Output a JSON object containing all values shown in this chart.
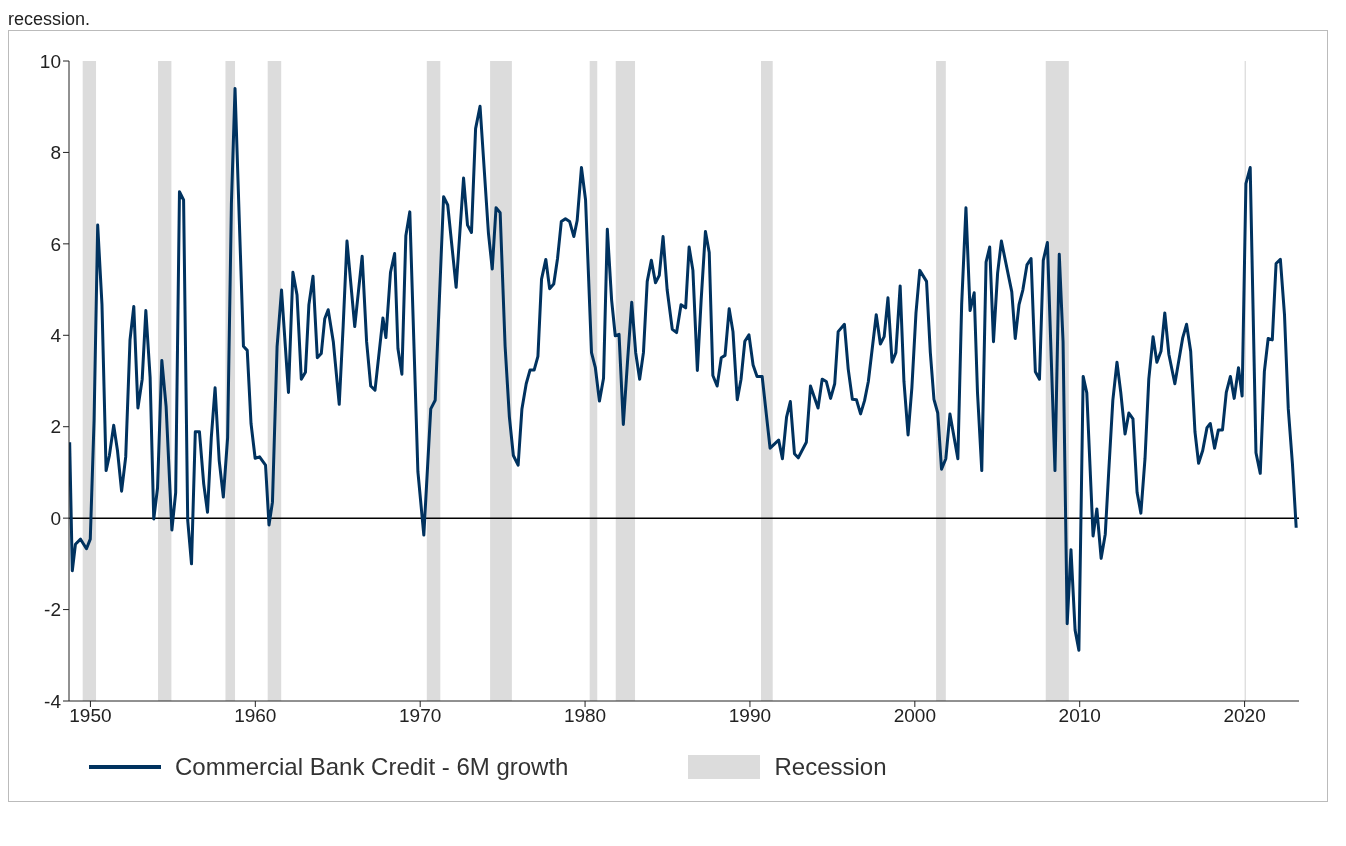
{
  "chart_data": {
    "type": "line",
    "title": "recession.",
    "marker": "none",
    "grid": false,
    "legend": "bottom",
    "x": [
      1948.74,
      1948.9,
      1949.09,
      1949.4,
      1949.76,
      1949.99,
      1950.22,
      1950.44,
      1950.7,
      1950.95,
      1951.15,
      1951.41,
      1951.64,
      1951.89,
      1952.14,
      1952.4,
      1952.63,
      1952.88,
      1953.14,
      1953.36,
      1953.62,
      1953.84,
      1954.07,
      1954.33,
      1954.59,
      1954.94,
      1955.17,
      1955.4,
      1955.65,
      1955.9,
      1956.13,
      1956.36,
      1956.61,
      1956.87,
      1957.1,
      1957.33,
      1957.56,
      1957.81,
      1958.06,
      1958.32,
      1958.55,
      1958.77,
      1959.03,
      1959.28,
      1959.51,
      1959.74,
      1959.99,
      1960.26,
      1960.62,
      1960.83,
      1961.04,
      1961.32,
      1961.59,
      1962.01,
      1962.28,
      1962.53,
      1962.79,
      1963.04,
      1963.25,
      1963.5,
      1963.76,
      1964.0,
      1964.21,
      1964.42,
      1964.73,
      1965.09,
      1965.33,
      1965.56,
      1966.03,
      1966.48,
      1966.75,
      1967.0,
      1967.26,
      1967.74,
      1967.92,
      1968.2,
      1968.45,
      1968.65,
      1968.89,
      1969.13,
      1969.37,
      1969.86,
      1970.22,
      1970.64,
      1970.91,
      1971.42,
      1971.67,
      1972.18,
      1972.63,
      1972.87,
      1973.11,
      1973.36,
      1973.63,
      1974.14,
      1974.37,
      1974.6,
      1974.85,
      1975.15,
      1975.41,
      1975.65,
      1975.94,
      1976.17,
      1976.43,
      1976.66,
      1976.91,
      1977.14,
      1977.36,
      1977.62,
      1977.85,
      1978.1,
      1978.33,
      1978.56,
      1978.81,
      1979.06,
      1979.32,
      1979.52,
      1979.78,
      1980.03,
      1980.39,
      1980.62,
      1980.87,
      1981.12,
      1981.35,
      1981.61,
      1981.83,
      1982.06,
      1982.32,
      1982.57,
      1982.83,
      1983.07,
      1983.31,
      1983.54,
      1983.77,
      1984.02,
      1984.27,
      1984.5,
      1984.73,
      1984.98,
      1985.29,
      1985.55,
      1985.82,
      1986.1,
      1986.31,
      1986.54,
      1986.81,
      1987.04,
      1987.3,
      1987.53,
      1987.75,
      1988.01,
      1988.26,
      1988.49,
      1988.74,
      1988.97,
      1989.23,
      1989.46,
      1989.69,
      1989.94,
      1990.19,
      1990.43,
      1990.74,
      1991.22,
      1991.48,
      1991.74,
      1991.97,
      1992.22,
      1992.45,
      1992.7,
      1992.93,
      1993.42,
      1993.67,
      1994.13,
      1994.38,
      1994.63,
      1994.89,
      1995.14,
      1995.35,
      1995.73,
      1995.96,
      1996.21,
      1996.46,
      1996.71,
      1996.95,
      1997.18,
      1997.66,
      1997.91,
      1998.14,
      1998.37,
      1998.62,
      1998.85,
      1999.11,
      1999.34,
      1999.59,
      1999.82,
      2000.07,
      2000.3,
      2000.71,
      2000.94,
      2001.16,
      2001.39,
      2001.62,
      2001.88,
      2002.13,
      2002.61,
      2002.84,
      2003.1,
      2003.35,
      2003.6,
      2003.8,
      2004.06,
      2004.32,
      2004.54,
      2004.77,
      2005.02,
      2005.25,
      2005.88,
      2006.09,
      2006.32,
      2006.55,
      2006.8,
      2007.05,
      2007.31,
      2007.56,
      2007.79,
      2008.04,
      2008.5,
      2008.76,
      2008.99,
      2009.24,
      2009.47,
      2009.72,
      2009.95,
      2010.21,
      2010.43,
      2010.81,
      2011.04,
      2011.3,
      2011.55,
      2011.76,
      2012.01,
      2012.26,
      2012.49,
      2012.75,
      2012.98,
      2013.23,
      2013.48,
      2013.71,
      2013.96,
      2014.19,
      2014.45,
      2014.68,
      2014.93,
      2015.16,
      2015.41,
      2015.77,
      2016.25,
      2016.48,
      2016.73,
      2016.99,
      2017.21,
      2017.46,
      2017.72,
      2017.92,
      2018.18,
      2018.41,
      2018.66,
      2018.89,
      2019.14,
      2019.37,
      2019.63,
      2019.85,
      2020.08,
      2020.34,
      2020.69,
      2020.95,
      2021.2,
      2021.43,
      2021.68,
      2021.91,
      2022.17,
      2022.42,
      2022.65,
      2022.9,
      2023.13
    ],
    "series": [
      {
        "name": "Commercial Bank Credit - 6M growth",
        "color": "#00325f",
        "values": [
          1.66,
          -1.15,
          -0.57,
          -0.46,
          -0.67,
          -0.46,
          2.13,
          6.41,
          4.67,
          1.04,
          1.37,
          2.03,
          1.48,
          0.59,
          1.34,
          3.9,
          4.63,
          2.41,
          3.04,
          4.54,
          3.08,
          -0.02,
          0.66,
          3.45,
          2.44,
          -0.26,
          0.56,
          7.14,
          6.96,
          -0.05,
          -1.0,
          1.89,
          1.89,
          0.75,
          0.13,
          1.76,
          2.85,
          1.26,
          0.46,
          1.76,
          6.87,
          9.4,
          6.5,
          3.76,
          3.67,
          2.07,
          1.31,
          1.34,
          1.16,
          -0.15,
          0.35,
          3.75,
          4.99,
          2.75,
          5.38,
          4.88,
          3.04,
          3.19,
          4.67,
          5.29,
          3.51,
          3.6,
          4.36,
          4.56,
          3.86,
          2.49,
          4.22,
          6.06,
          4.19,
          5.73,
          3.86,
          2.89,
          2.8,
          4.38,
          3.95,
          5.38,
          5.79,
          3.71,
          3.15,
          6.18,
          6.7,
          1.02,
          -0.37,
          2.39,
          2.58,
          7.03,
          6.85,
          5.05,
          7.44,
          6.41,
          6.25,
          8.52,
          9.01,
          6.23,
          5.45,
          6.79,
          6.68,
          3.76,
          2.21,
          1.37,
          1.16,
          2.39,
          2.94,
          3.24,
          3.24,
          3.54,
          5.23,
          5.66,
          5.02,
          5.12,
          5.68,
          6.49,
          6.55,
          6.49,
          6.16,
          6.51,
          7.67,
          6.96,
          3.62,
          3.3,
          2.56,
          3.06,
          6.32,
          4.77,
          3.99,
          4.02,
          2.05,
          3.4,
          4.72,
          3.62,
          3.04,
          3.62,
          5.18,
          5.64,
          5.15,
          5.31,
          6.16,
          4.99,
          4.13,
          4.06,
          4.67,
          4.6,
          5.93,
          5.42,
          3.23,
          4.77,
          6.27,
          5.81,
          3.12,
          2.89,
          3.51,
          3.56,
          4.58,
          4.08,
          2.59,
          3.04,
          3.87,
          4.01,
          3.35,
          3.1,
          3.1,
          1.53,
          1.62,
          1.71,
          1.3,
          2.21,
          2.55,
          1.41,
          1.32,
          1.66,
          2.89,
          2.41,
          3.04,
          2.99,
          2.62,
          2.94,
          4.08,
          4.24,
          3.26,
          2.6,
          2.59,
          2.28,
          2.57,
          2.99,
          4.45,
          3.81,
          3.97,
          4.82,
          3.41,
          3.62,
          5.08,
          2.99,
          1.82,
          2.85,
          4.49,
          5.42,
          5.18,
          3.62,
          2.6,
          2.3,
          1.07,
          1.3,
          2.28,
          1.3,
          4.67,
          6.79,
          4.54,
          4.93,
          2.75,
          1.04,
          5.6,
          5.93,
          3.86,
          5.36,
          6.06,
          4.95,
          3.93,
          4.67,
          4.99,
          5.54,
          5.68,
          3.2,
          3.04,
          5.64,
          6.03,
          1.04,
          5.77,
          3.86,
          -2.31,
          -0.69,
          -2.45,
          -2.89,
          3.1,
          2.74,
          -0.39,
          0.2,
          -0.88,
          -0.35,
          1.02,
          2.58,
          3.41,
          2.75,
          1.84,
          2.3,
          2.17,
          0.56,
          0.11,
          1.3,
          3.04,
          3.97,
          3.41,
          3.65,
          4.49,
          3.58,
          2.94,
          3.95,
          4.24,
          3.65,
          1.89,
          1.2,
          1.48,
          1.98,
          2.07,
          1.53,
          1.93,
          1.93,
          2.75,
          3.1,
          2.62,
          3.29,
          2.67,
          7.32,
          7.67,
          1.43,
          0.98,
          3.21,
          3.93,
          3.9,
          5.57,
          5.66,
          4.45,
          2.39,
          1.2,
          -0.21
        ]
      }
    ],
    "xlim": [
      1948.7,
      2023.3
    ],
    "xticks": [
      1950,
      1960,
      1970,
      1980,
      1990,
      2000,
      2010,
      2020
    ],
    "ylim": [
      -4,
      10
    ],
    "yticks": [
      -4,
      -2,
      0,
      2,
      4,
      6,
      8,
      10
    ],
    "ref_lines": [
      {
        "axis": "y",
        "value": 0,
        "color": "#000000"
      }
    ],
    "bands": [
      {
        "axis": "x",
        "from": 1949.53,
        "to": 1950.34,
        "label": "Recession",
        "color": "#dcdcdc"
      },
      {
        "axis": "x",
        "from": 1954.1,
        "to": 1954.91,
        "color": "#dcdcdc"
      },
      {
        "axis": "x",
        "from": 1958.19,
        "to": 1958.77,
        "color": "#dcdcdc"
      },
      {
        "axis": "x",
        "from": 1960.75,
        "to": 1961.57,
        "color": "#dcdcdc"
      },
      {
        "axis": "x",
        "from": 1970.4,
        "to": 1971.22,
        "color": "#dcdcdc"
      },
      {
        "axis": "x",
        "from": 1974.24,
        "to": 1975.56,
        "color": "#dcdcdc"
      },
      {
        "axis": "x",
        "from": 1980.28,
        "to": 1980.74,
        "color": "#dcdcdc"
      },
      {
        "axis": "x",
        "from": 1981.86,
        "to": 1983.03,
        "color": "#dcdcdc"
      },
      {
        "axis": "x",
        "from": 1990.67,
        "to": 1991.38,
        "color": "#dcdcdc"
      },
      {
        "axis": "x",
        "from": 2001.29,
        "to": 2001.88,
        "color": "#dcdcdc"
      },
      {
        "axis": "x",
        "from": 2007.94,
        "to": 2009.34,
        "color": "#dcdcdc"
      },
      {
        "axis": "x",
        "from": 2020.0,
        "to": 2020.08,
        "color": "#dcdcdc"
      }
    ]
  }
}
